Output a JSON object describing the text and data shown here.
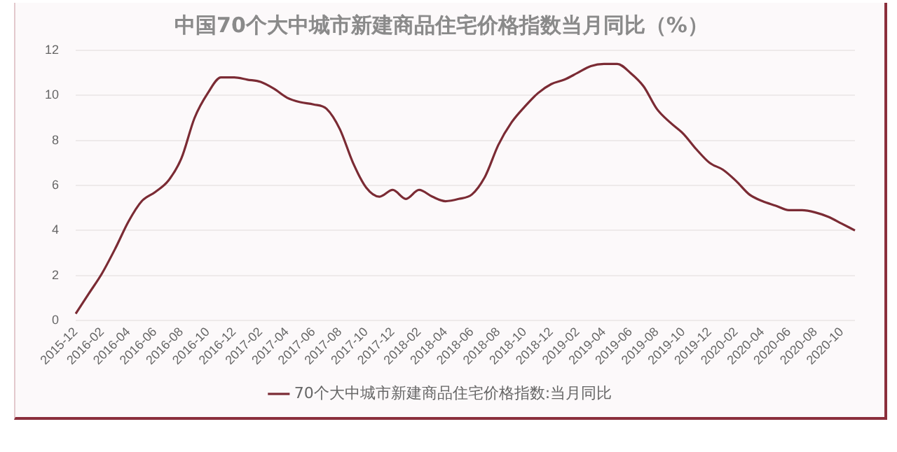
{
  "chart_data": {
    "type": "line",
    "title": "中国70个大中城市新建商品住宅价格指数当月同比（%）",
    "categories": [
      "2015-12",
      null,
      "2016-02",
      null,
      "2016-04",
      null,
      "2016-06",
      null,
      "2016-08",
      null,
      "2016-10",
      null,
      "2016-12",
      null,
      "2017-02",
      null,
      "2017-04",
      null,
      "2017-06",
      null,
      "2017-08",
      null,
      "2017-10",
      null,
      "2017-12",
      null,
      "2018-02",
      null,
      "2018-04",
      null,
      "2018-06",
      null,
      "2018-08",
      null,
      "2018-10",
      null,
      "2018-12",
      null,
      "2019-02",
      null,
      "2019-04",
      null,
      "2019-06",
      null,
      "2019-08",
      null,
      "2019-10",
      null,
      "2019-12",
      null,
      "2020-02",
      null,
      "2020-04",
      null,
      "2020-06",
      null,
      "2020-08",
      null,
      "2020-10",
      null
    ],
    "series": [
      {
        "name": "70个大中城市新建商品住宅价格指数:当月同比",
        "color": "#7b2b34",
        "values": [
          0.3,
          1.2,
          2.1,
          3.2,
          4.4,
          5.3,
          5.7,
          6.2,
          7.2,
          9.0,
          10.1,
          10.8,
          10.8,
          10.7,
          10.6,
          10.3,
          9.9,
          9.7,
          9.6,
          9.4,
          8.5,
          7.0,
          5.9,
          5.5,
          5.8,
          5.4,
          5.8,
          5.5,
          5.3,
          5.4,
          5.6,
          6.4,
          7.8,
          8.8,
          9.5,
          10.1,
          10.5,
          10.7,
          11.0,
          11.3,
          11.4,
          11.4,
          11.0,
          10.4,
          9.4,
          8.8,
          8.3,
          7.6,
          7.0,
          6.7,
          6.2,
          5.6,
          5.3,
          5.1,
          4.9,
          4.9,
          4.8,
          4.6,
          4.3,
          4.0
        ]
      }
    ],
    "ylim": [
      0,
      12
    ],
    "yticks": [
      0,
      2,
      4,
      6,
      8,
      10,
      12
    ],
    "grid": "y",
    "legend": "bottom",
    "marker": "none",
    "line_style": "solid"
  }
}
